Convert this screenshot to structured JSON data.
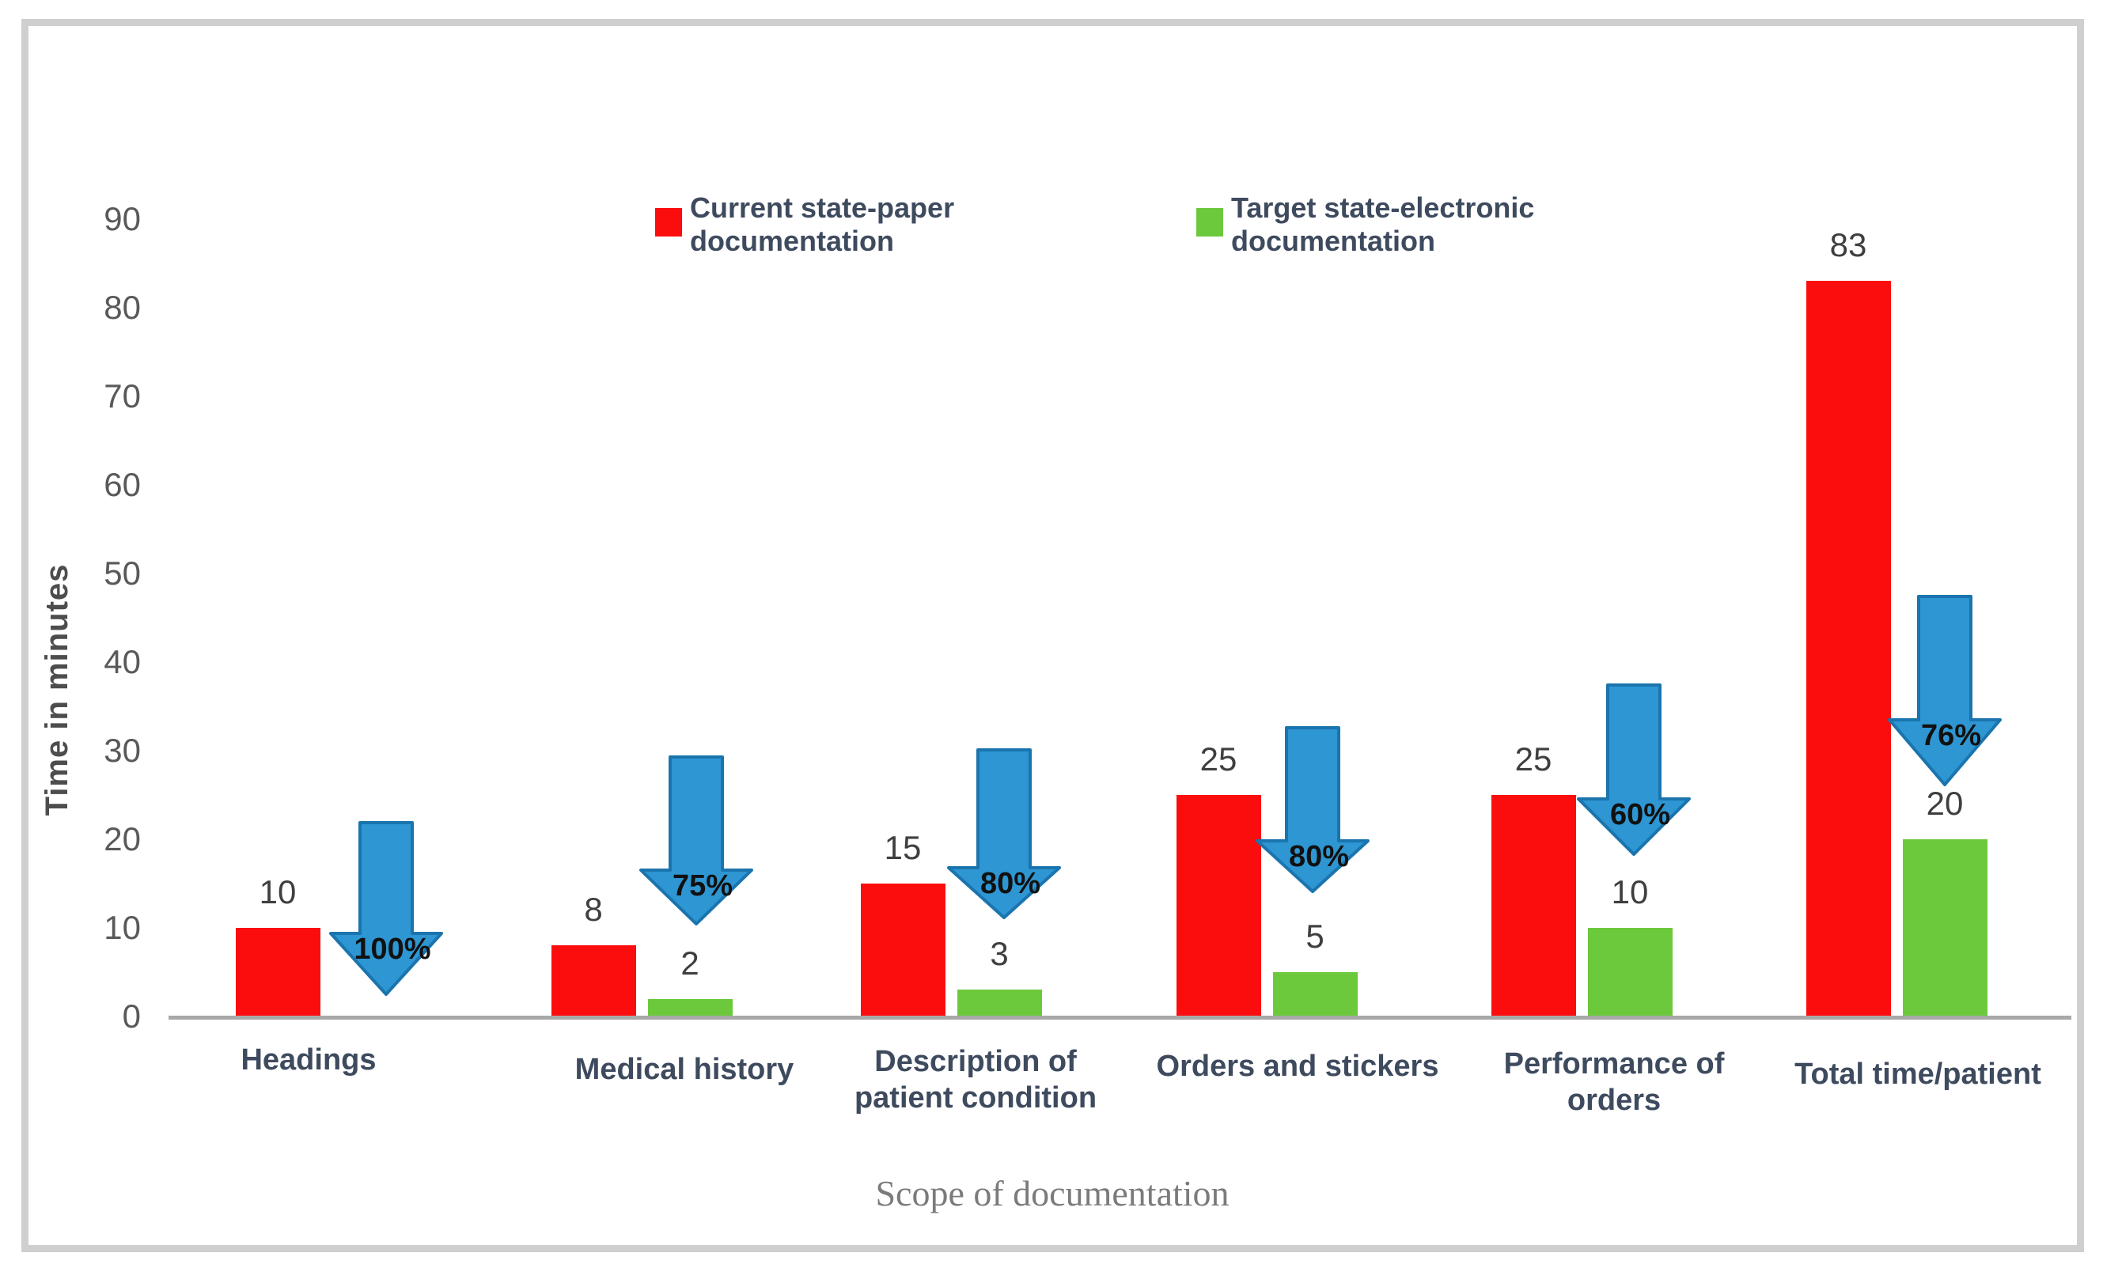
{
  "chart_data": {
    "type": "bar",
    "title": "",
    "xlabel": "Scope of documentation",
    "ylabel": "Time in minutes",
    "ylim": [
      0,
      90
    ],
    "y_ticks": [
      0,
      10,
      20,
      30,
      40,
      50,
      60,
      70,
      80,
      90
    ],
    "grid": false,
    "legend_position": "top",
    "categories": [
      "Headings",
      "Medical history",
      "Description of patient condition",
      "Orders and stickers",
      "Performance of orders",
      "Total time/patient"
    ],
    "series": [
      {
        "name": "Current state-paper documentation",
        "color": "#fc0d0d",
        "values": [
          10,
          8,
          15,
          25,
          25,
          83
        ]
      },
      {
        "name": "Target state-electronic documentation",
        "color": "#6cc93c",
        "values": [
          0,
          2,
          3,
          5,
          10,
          20
        ]
      }
    ],
    "reduction_arrows": {
      "shape": "down-arrow",
      "fill_color": "#2e96d2",
      "border_color": "#1a74ae",
      "labels": [
        "100%",
        "75%",
        "80%",
        "80%",
        "60%",
        "76%"
      ]
    }
  }
}
